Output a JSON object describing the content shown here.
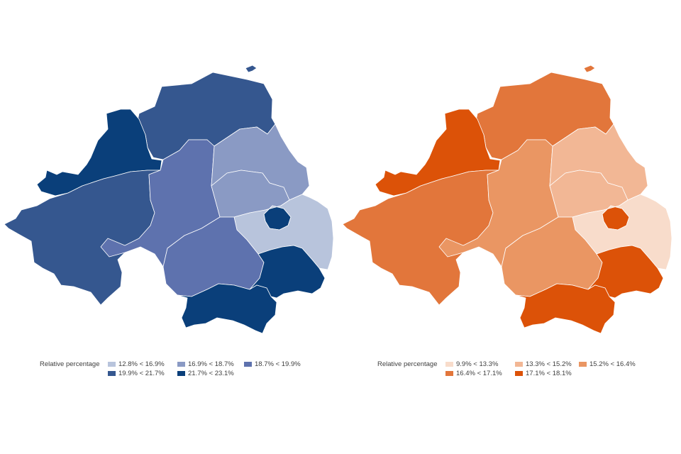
{
  "maps": [
    {
      "legend_title": "Relative percentage",
      "classes": [
        {
          "label": "12.8% < 16.9%",
          "color": "#b8c4dc"
        },
        {
          "label": "16.9% < 18.7%",
          "color": "#8a9ac4"
        },
        {
          "label": "18.7% < 19.9%",
          "color": "#5e72ae"
        },
        {
          "label": "19.9% < 21.7%",
          "color": "#35578f"
        },
        {
          "label": "21.7% < 23.1%",
          "color": "#0a3f7a"
        }
      ]
    },
    {
      "legend_title": "Relative percentage",
      "classes": [
        {
          "label": "9.9% < 13.3%",
          "color": "#f8dccb"
        },
        {
          "label": "13.3% < 15.2%",
          "color": "#f2b795"
        },
        {
          "label": "15.2% < 16.4%",
          "color": "#ea9663"
        },
        {
          "label": "16.4% < 17.1%",
          "color": "#e2763b"
        },
        {
          "label": "17.1% < 18.1%",
          "color": "#dc5208"
        }
      ]
    }
  ],
  "regions": [
    {
      "id": "north",
      "classes": [
        3,
        3
      ]
    },
    {
      "id": "northwest",
      "classes": [
        4,
        4
      ]
    },
    {
      "id": "west",
      "classes": [
        3,
        3
      ]
    },
    {
      "id": "center",
      "classes": [
        2,
        2
      ]
    },
    {
      "id": "northeast",
      "classes": [
        1,
        1
      ]
    },
    {
      "id": "east-inner",
      "classes": [
        1,
        1
      ]
    },
    {
      "id": "belfast",
      "classes": [
        4,
        4
      ]
    },
    {
      "id": "east",
      "classes": [
        0,
        0
      ]
    },
    {
      "id": "south-center",
      "classes": [
        2,
        2
      ]
    },
    {
      "id": "southeast",
      "classes": [
        4,
        4
      ]
    },
    {
      "id": "south",
      "classes": [
        4,
        4
      ]
    },
    {
      "id": "island",
      "classes": [
        3,
        3
      ]
    }
  ]
}
